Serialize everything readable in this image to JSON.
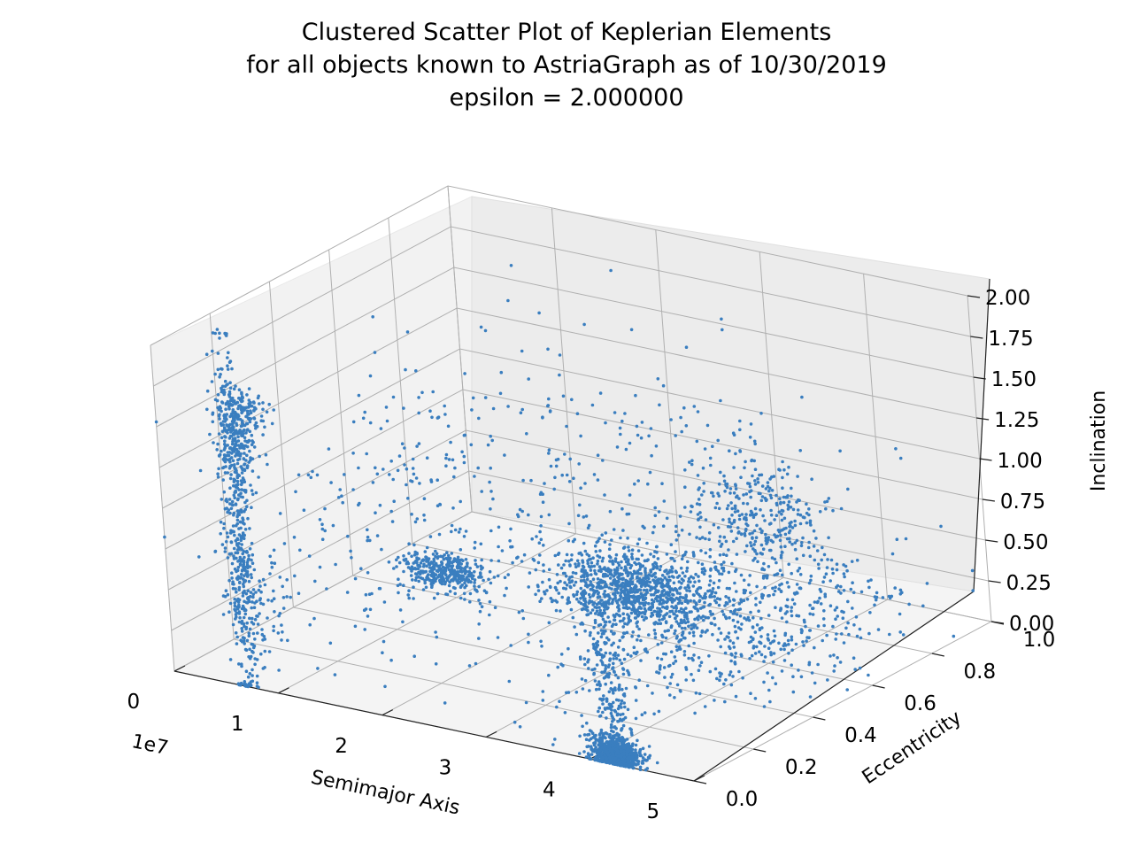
{
  "chart_data": {
    "type": "scatter",
    "projection": "3d",
    "title": [
      "Clustered Scatter Plot of Keplerian Elements",
      "for all objects known to AstriaGraph as of 10/30/2019",
      "epsilon = 2.000000"
    ],
    "xlabel": "Semimajor Axis",
    "ylabel": "Eccentricity",
    "zlabel": "Inclination",
    "x_offset_label": "1e7",
    "x_ticks": [
      "0",
      "1",
      "2",
      "3",
      "4",
      "5"
    ],
    "y_ticks": [
      "0.0",
      "0.2",
      "0.4",
      "0.6",
      "0.8",
      "1.0"
    ],
    "z_ticks": [
      "0.00",
      "0.25",
      "0.50",
      "0.75",
      "1.00",
      "1.25",
      "1.50",
      "1.75",
      "2.00"
    ],
    "xlim": [
      0,
      5
    ],
    "ylim": [
      0,
      1
    ],
    "zlim": [
      0,
      2
    ],
    "grid": true,
    "point_color": "#3a7ebf",
    "outlier_color": "#9a9a9a",
    "clusters": [
      {
        "name": "",
        "x_center": 0.7,
        "y_center": 0.005,
        "z_center": 0.95,
        "x_spread": 0.06,
        "y_spread": 0.01,
        "z_spread": 0.55,
        "count": 420
      },
      {
        "name": "",
        "x_center": 0.75,
        "y_center": 0.01,
        "z_center": 1.5,
        "x_spread": 0.1,
        "y_spread": 0.01,
        "z_spread": 0.12,
        "count": 160
      },
      {
        "name": "",
        "x_center": 0.8,
        "y_center": 0.01,
        "z_center": 1.72,
        "x_spread": 0.12,
        "y_spread": 0.015,
        "z_spread": 0.06,
        "count": 120
      },
      {
        "name": "",
        "x_center": 0.8,
        "y_center": 0.02,
        "z_center": 0.5,
        "x_spread": 0.15,
        "y_spread": 0.02,
        "z_spread": 0.2,
        "count": 110
      },
      {
        "name": "",
        "x_center": 2.66,
        "y_center": 0.02,
        "z_center": 0.95,
        "x_spread": 0.18,
        "y_spread": 0.02,
        "z_spread": 0.05,
        "count": 360
      },
      {
        "name": "",
        "x_center": 4.22,
        "y_center": 0.01,
        "z_center": 0.05,
        "x_spread": 0.12,
        "y_spread": 0.01,
        "z_spread": 0.05,
        "count": 720
      },
      {
        "name": "",
        "x_center": 4.22,
        "y_center": 0.003,
        "z_center": 0.5,
        "x_spread": 0.1,
        "y_spread": 0.01,
        "z_spread": 0.35,
        "count": 260
      },
      {
        "name": "",
        "x_center": 2.4,
        "y_center": 0.72,
        "z_center": 0.12,
        "x_spread": 0.35,
        "y_spread": 0.06,
        "z_spread": 0.1,
        "count": 900
      },
      {
        "name": "",
        "x_center": 3.2,
        "y_center": 0.88,
        "z_center": 0.55,
        "x_spread": 0.3,
        "y_spread": 0.05,
        "z_spread": 0.2,
        "count": 320
      },
      {
        "name": "",
        "x_center": 3.6,
        "y_center": 0.6,
        "z_center": 0.15,
        "x_spread": 0.5,
        "y_spread": 0.2,
        "z_spread": 0.15,
        "count": 650
      },
      {
        "name": "",
        "x_center": 2.2,
        "y_center": 0.4,
        "z_center": 0.9,
        "x_spread": 1.1,
        "y_spread": 0.3,
        "z_spread": 0.35,
        "count": 520
      }
    ]
  }
}
